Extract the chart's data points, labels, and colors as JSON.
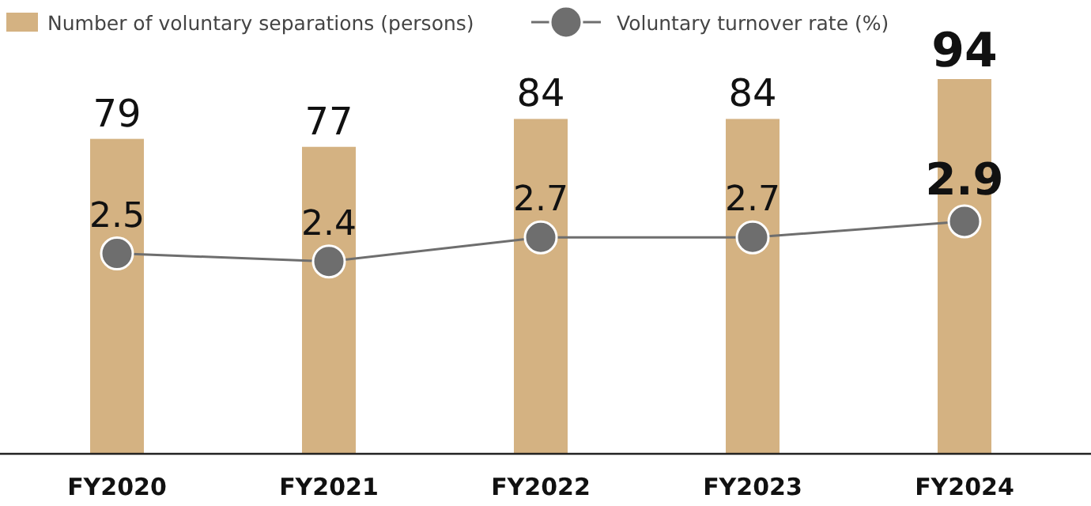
{
  "chart_data": {
    "type": "bar",
    "categories": [
      "FY2020",
      "FY2021",
      "FY2022",
      "FY2023",
      "FY2024"
    ],
    "series": [
      {
        "name": "Number of voluntary separations (persons)",
        "color": "#d4b282",
        "values": [
          79,
          77,
          84,
          84,
          94
        ]
      },
      {
        "name": "Voluntary turnover rate (%)",
        "type": "line",
        "axis": "y2",
        "color": "#6e6e6e",
        "marker": "circle",
        "values": [
          2.5,
          2.4,
          2.7,
          2.7,
          2.9
        ]
      }
    ],
    "data_labels": true,
    "legend": "top left",
    "tick_labels": "x"
  }
}
